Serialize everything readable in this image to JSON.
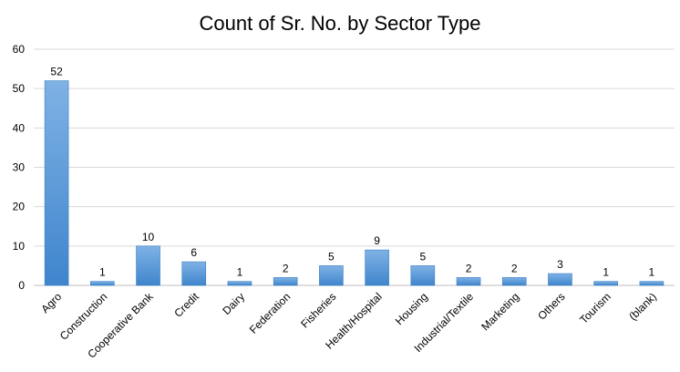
{
  "chart_data": {
    "type": "bar",
    "title": "Count of Sr. No. by Sector Type",
    "xlabel": "",
    "ylabel": "",
    "categories": [
      "Agro",
      "Construction",
      "Cooperative Bank",
      "Credit",
      "Dairy",
      "Federation",
      "Fisheries",
      "Health/Hospital",
      "Housing",
      "Industrial/Textile",
      "Marketing",
      "Others",
      "Tourism",
      "(blank)"
    ],
    "values": [
      52,
      1,
      10,
      6,
      1,
      2,
      5,
      9,
      5,
      2,
      2,
      3,
      1,
      1
    ],
    "ylim": [
      0,
      60
    ],
    "yticks": [
      0,
      10,
      20,
      30,
      40,
      50,
      60
    ],
    "grid": true,
    "legend": "none",
    "data_labels": true,
    "bar_color": "#5b9bd5"
  }
}
